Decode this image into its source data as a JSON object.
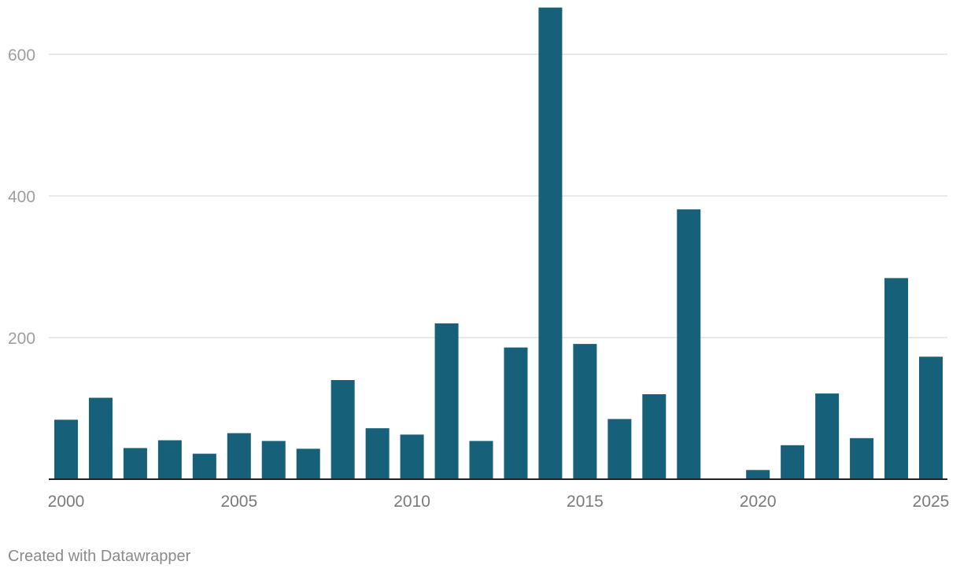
{
  "chart_data": {
    "type": "bar",
    "title": "",
    "xlabel": "",
    "ylabel": "",
    "ylim": [
      0,
      670
    ],
    "yticks": [
      200,
      400,
      600
    ],
    "xtick_labels": [
      "2000",
      "2005",
      "2010",
      "2015",
      "2020",
      "2025"
    ],
    "grid": true,
    "bar_color": "#16607a",
    "categories": [
      "2000",
      "2001",
      "2002",
      "2003",
      "2004",
      "2005",
      "2006",
      "2007",
      "2008",
      "2009",
      "2010",
      "2011",
      "2012",
      "2013",
      "2014",
      "2015",
      "2016",
      "2017",
      "2018",
      "2019",
      "2020",
      "2021",
      "2022",
      "2023",
      "2024",
      "2025"
    ],
    "values": [
      84,
      115,
      44,
      55,
      36,
      65,
      54,
      43,
      140,
      72,
      63,
      220,
      54,
      186,
      666,
      191,
      85,
      120,
      381,
      0,
      13,
      48,
      121,
      58,
      284,
      173
    ]
  },
  "footer": {
    "credit": "Created with Datawrapper"
  }
}
